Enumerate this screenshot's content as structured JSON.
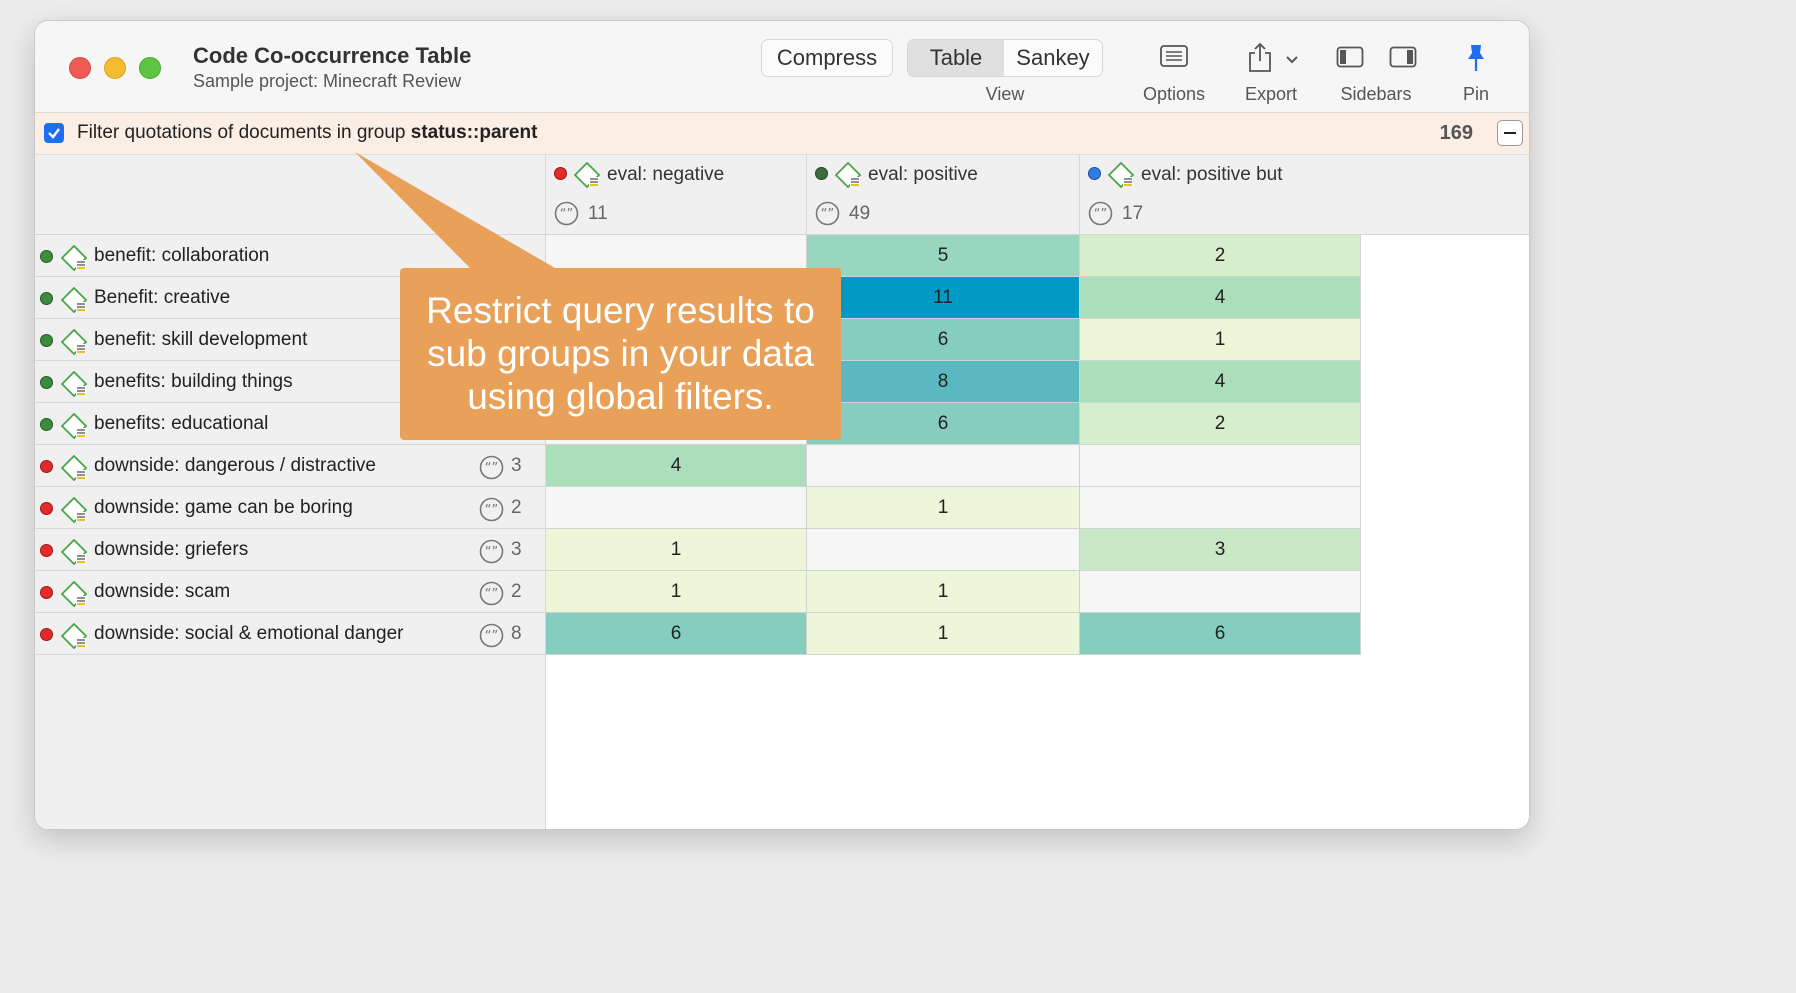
{
  "window": {
    "title": "Code Co-occurrence Table",
    "subtitle": "Sample project: Minecraft Review"
  },
  "toolbar": {
    "compress_label": "Compress",
    "view_options": [
      "Table",
      "Sankey"
    ],
    "view_selected": "Table",
    "view_label": "View",
    "options_label": "Options",
    "export_label": "Export",
    "sidebars_label": "Sidebars",
    "pin_label": "Pin"
  },
  "filter": {
    "checked": true,
    "text_prefix": "Filter quotations of documents in group ",
    "group_name": "status::parent",
    "count": "169"
  },
  "columns": [
    {
      "label": "eval: negative",
      "count": "11",
      "color": "#e52a2a"
    },
    {
      "label": "eval: positive",
      "count": "49",
      "color": "#3d6b3d"
    },
    {
      "label": "eval: positive but",
      "count": "17",
      "color": "#2f7de1"
    }
  ],
  "rows": [
    {
      "label": "benefit: collaboration",
      "color": "#3d8b3d",
      "count": "",
      "cells": [
        "",
        "5",
        "2"
      ]
    },
    {
      "label": "Benefit: creative",
      "color": "#3d8b3d",
      "count": "",
      "cells": [
        "",
        "11",
        "4"
      ]
    },
    {
      "label": "benefit: skill development",
      "color": "#3d8b3d",
      "count": "",
      "cells": [
        "",
        "6",
        "1"
      ]
    },
    {
      "label": "benefits: building things",
      "color": "#3d8b3d",
      "count": "",
      "cells": [
        "",
        "8",
        "4"
      ]
    },
    {
      "label": "benefits: educational",
      "color": "#3d8b3d",
      "count": "",
      "cells": [
        "",
        "6",
        "2"
      ]
    },
    {
      "label": "downside: dangerous / distractive",
      "color": "#e52a2a",
      "count": "3",
      "cells": [
        "4",
        "",
        ""
      ]
    },
    {
      "label": "downside: game can be boring",
      "color": "#e52a2a",
      "count": "2",
      "cells": [
        "",
        "1",
        ""
      ]
    },
    {
      "label": "downside: griefers",
      "color": "#e52a2a",
      "count": "3",
      "cells": [
        "1",
        "",
        "3"
      ]
    },
    {
      "label": "downside: scam",
      "color": "#e52a2a",
      "count": "2",
      "cells": [
        "1",
        "1",
        ""
      ]
    },
    {
      "label": "downside: social & emotional danger",
      "color": "#e52a2a",
      "count": "8",
      "cells": [
        "6",
        "1",
        "6"
      ]
    }
  ],
  "heat_colors": {
    "empty": "#f6f6f6",
    "1": "#edf6d8",
    "2": "#d6eecb",
    "3": "#c8e8c6",
    "4": "#abdfbc",
    "5": "#99d6c0",
    "6": "#85cdbe",
    "8": "#5cb8c0",
    "11": "#009ac6"
  },
  "callout": {
    "text": "Restrict query results to sub groups in your data using global filters.",
    "color": "#e9a15a"
  }
}
